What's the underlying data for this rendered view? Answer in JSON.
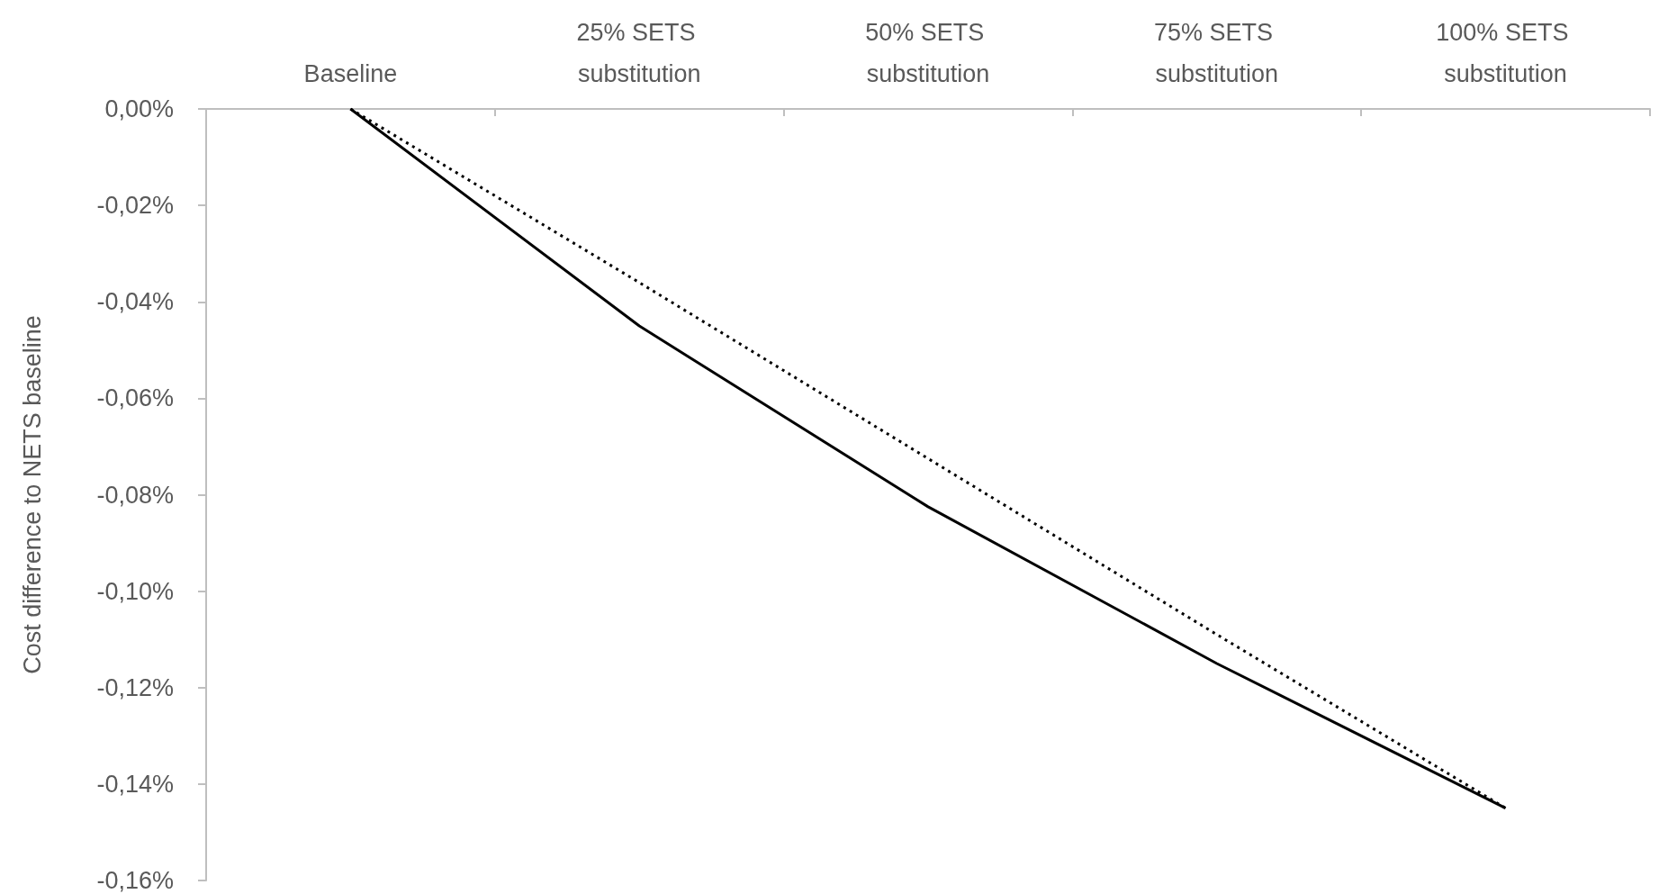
{
  "chart_data": {
    "type": "line",
    "ylabel": "Cost difference to NETS baseline",
    "categories": [
      "Baseline",
      "25% SETS substitution",
      "50% SETS substitution",
      "75% SETS substitution",
      "100% SETS substitution"
    ],
    "series": [
      {
        "color": "#000000",
        "line_style": "solid",
        "values": [
          0,
          -0.045,
          -0.0825,
          -0.115,
          -0.145
        ]
      },
      {
        "color": "#000000",
        "line_style": "dotted",
        "values": [
          0,
          -0.036,
          -0.0725,
          -0.109,
          -0.145
        ]
      }
    ],
    "ylim": [
      -0.16,
      0
    ],
    "yticks": [
      {
        "value": 0,
        "label": "0,00%"
      },
      {
        "value": -0.02,
        "label": "-0,02%"
      },
      {
        "value": -0.04,
        "label": "-0,04%"
      },
      {
        "value": -0.06,
        "label": "-0,06%"
      },
      {
        "value": -0.08,
        "label": "-0,08%"
      },
      {
        "value": -0.1,
        "label": "-0,10%"
      },
      {
        "value": -0.12,
        "label": "-0,12%"
      },
      {
        "value": -0.14,
        "label": "-0,14%"
      },
      {
        "value": -0.16,
        "label": "-0,16%"
      }
    ],
    "grid": false,
    "marker": "none"
  }
}
